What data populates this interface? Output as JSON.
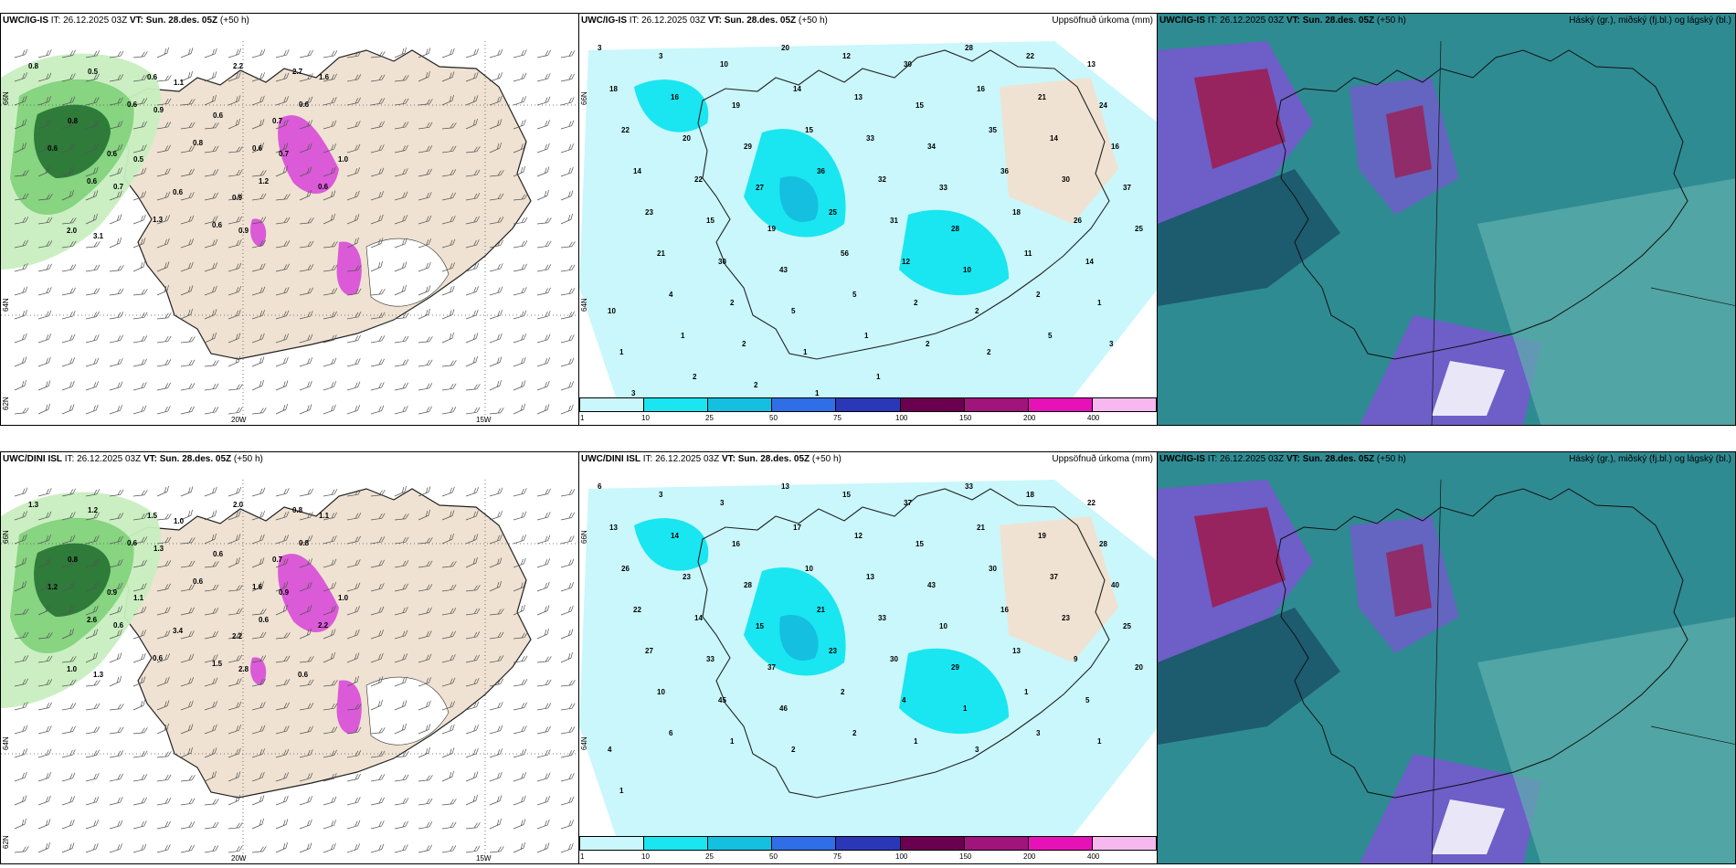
{
  "colors": {
    "land": "#efe2d2",
    "precip_light": "#c9f7fb",
    "precip_10": "#19e6f0",
    "precip_25": "#14bfe0",
    "green_light": "#c8eec0",
    "green_mid": "#7fd07a",
    "green_dark": "#1f6b2e",
    "magenta": "#d84bd8",
    "cloud_dark": "#1d5b6f",
    "cloud_mid": "#2f8b92",
    "cloud_light": "#5fb1ad",
    "cloud_purple": "#6d5ec8",
    "cloud_red": "#9b1e52"
  },
  "rows": [
    {
      "model_left": "UWC/IG-IS",
      "model_center": "UWC/IG-IS",
      "model_right": "UWC/IG-IS",
      "it_label": "IT:",
      "it_value": "26.12.2025 03Z",
      "vt_label": "VT:",
      "vt_value": "Sun. 28.des. 05Z",
      "lead": "(+50 h)",
      "center_right_title": "Uppsöfnuð úrkoma (mm)",
      "right_right_title": "Háský (gr.), miðský (fj.bl.) og lágský (bl.)",
      "lon_labels": [
        "20W",
        "15W"
      ],
      "lat_labels": [
        "66N",
        "64N",
        "62N"
      ],
      "center_lat_labels": [
        "66N",
        "64N"
      ],
      "left_values": [
        "0.8",
        "0.5",
        "0.6",
        "1.1",
        "2.2",
        "2.7",
        "1.6",
        "0.8",
        "0.6",
        "0.9",
        "0.6",
        "0.7",
        "0.6",
        "0.6",
        "0.6",
        "0.5",
        "0.8",
        "0.6",
        "0.7",
        "1.0",
        "0.6",
        "0.7",
        "0.6",
        "0.9",
        "1.2",
        "0.6",
        "2.0",
        "3.1",
        "1.3",
        "0.6",
        "0.9"
      ],
      "center_values": [
        "3",
        "3",
        "10",
        "20",
        "12",
        "30",
        "28",
        "22",
        "13",
        "18",
        "16",
        "19",
        "14",
        "13",
        "15",
        "16",
        "21",
        "24",
        "22",
        "20",
        "29",
        "15",
        "33",
        "34",
        "35",
        "14",
        "16",
        "14",
        "22",
        "27",
        "36",
        "32",
        "33",
        "36",
        "30",
        "37",
        "23",
        "15",
        "19",
        "25",
        "31",
        "28",
        "18",
        "26",
        "25",
        "21",
        "30",
        "43",
        "56",
        "12",
        "10",
        "11",
        "14",
        "10",
        "4",
        "2",
        "5",
        "5",
        "2",
        "2",
        "2",
        "1",
        "1",
        "1",
        "2",
        "1",
        "1",
        "2",
        "2",
        "5",
        "3",
        "3",
        "2",
        "2",
        "1",
        "1"
      ],
      "colorbar_labels": [
        "1",
        "10",
        "25",
        "50",
        "75",
        "100",
        "150",
        "200",
        "400"
      ]
    },
    {
      "model_left": "UWC/DINI ISL",
      "model_center": "UWC/DINI ISL",
      "model_right": "UWC/IG-IS",
      "it_label": "IT:",
      "it_value": "26.12.2025 03Z",
      "vt_label": "VT:",
      "vt_value": "Sun. 28.des. 05Z",
      "lead": "(+50 h)",
      "center_right_title": "Uppsöfnuð úrkoma (mm)",
      "right_right_title": "Háský (gr.), miðský (fj.bl.) og lágský (bl.)",
      "lon_labels": [
        "20W",
        "15W"
      ],
      "lat_labels": [
        "66N",
        "64N",
        "62N"
      ],
      "center_lat_labels": [
        "66N",
        "64N"
      ],
      "left_values": [
        "1.3",
        "1.2",
        "1.5",
        "1.0",
        "2.0",
        "0.8",
        "1.1",
        "0.8",
        "0.6",
        "1.3",
        "0.6",
        "0.7",
        "0.8",
        "1.2",
        "0.9",
        "1.1",
        "0.6",
        "1.6",
        "0.9",
        "1.0",
        "2.6",
        "0.6",
        "3.4",
        "2.2",
        "0.6",
        "2.2",
        "1.0",
        "1.3",
        "0.6",
        "1.5",
        "2.8",
        "0.6"
      ],
      "center_values": [
        "6",
        "3",
        "3",
        "13",
        "15",
        "37",
        "33",
        "18",
        "22",
        "13",
        "14",
        "16",
        "17",
        "12",
        "15",
        "21",
        "19",
        "28",
        "26",
        "23",
        "28",
        "10",
        "13",
        "43",
        "30",
        "37",
        "40",
        "22",
        "14",
        "15",
        "21",
        "33",
        "10",
        "16",
        "23",
        "25",
        "27",
        "33",
        "37",
        "23",
        "30",
        "29",
        "13",
        "9",
        "20",
        "10",
        "45",
        "46",
        "2",
        "4",
        "1",
        "1",
        "5",
        "4",
        "6",
        "1",
        "2",
        "2",
        "1",
        "3",
        "3",
        "1",
        "1"
      ],
      "colorbar_labels": [
        "1",
        "10",
        "25",
        "50",
        "75",
        "100",
        "150",
        "200",
        "400"
      ]
    }
  ]
}
